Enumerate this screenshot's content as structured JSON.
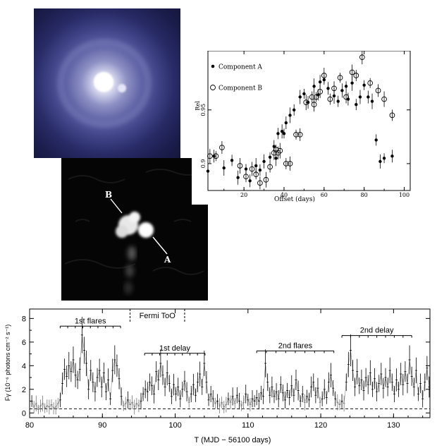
{
  "optical_image": {},
  "radio_image": {
    "label_b": "B",
    "label_a": "A"
  },
  "chart_data": [
    {
      "type": "scatter",
      "xlabel": "Offset (days)",
      "ylabel": "Rel",
      "xticks": [
        "20",
        "40",
        "60",
        "80",
        "100"
      ],
      "yticks": [
        "0.9",
        "0.95"
      ],
      "xlim": [
        2,
        103
      ],
      "ylim": [
        0.875,
        1.005
      ],
      "series": [
        {
          "name": "Component A",
          "marker": "filled",
          "points": [
            [
              2,
              0.893
            ],
            [
              5,
              0.907
            ],
            [
              10,
              0.896
            ],
            [
              14,
              0.903
            ],
            [
              17,
              0.887
            ],
            [
              21,
              0.895
            ],
            [
              23,
              0.884
            ],
            [
              26,
              0.898
            ],
            [
              28,
              0.894
            ],
            [
              30,
              0.902
            ],
            [
              33,
              0.906
            ],
            [
              35,
              0.916
            ],
            [
              36,
              0.905
            ],
            [
              37,
              0.928
            ],
            [
              39,
              0.93
            ],
            [
              40,
              0.928
            ],
            [
              41,
              0.938
            ],
            [
              43,
              0.945
            ],
            [
              45,
              0.95
            ],
            [
              48,
              0.962
            ],
            [
              50,
              0.965
            ],
            [
              52,
              0.957
            ],
            [
              55,
              0.972
            ],
            [
              57,
              0.964
            ],
            [
              58,
              0.976
            ],
            [
              60,
              0.978
            ],
            [
              62,
              0.97
            ],
            [
              65,
              0.963
            ],
            [
              67,
              0.958
            ],
            [
              69,
              0.968
            ],
            [
              71,
              0.972
            ],
            [
              72,
              0.96
            ],
            [
              74,
              0.975
            ],
            [
              76,
              0.955
            ],
            [
              78,
              0.962
            ],
            [
              80,
              0.973
            ],
            [
              82,
              0.962
            ],
            [
              84,
              0.958
            ],
            [
              86,
              0.922
            ],
            [
              88,
              0.902
            ],
            [
              90,
              0.905
            ],
            [
              94,
              0.907
            ]
          ]
        },
        {
          "name": "Component B",
          "marker": "open",
          "points": [
            [
              3,
              0.907
            ],
            [
              6,
              0.907
            ],
            [
              9,
              0.915
            ],
            [
              18,
              0.898
            ],
            [
              21,
              0.888
            ],
            [
              24,
              0.895
            ],
            [
              26,
              0.89
            ],
            [
              28,
              0.882
            ],
            [
              31,
              0.885
            ],
            [
              33,
              0.897
            ],
            [
              35,
              0.91
            ],
            [
              36,
              0.913
            ],
            [
              37,
              0.91
            ],
            [
              38,
              0.912
            ],
            [
              41,
              0.9
            ],
            [
              43,
              0.9
            ],
            [
              46,
              0.927
            ],
            [
              48,
              0.927
            ],
            [
              51,
              0.957
            ],
            [
              54,
              0.962
            ],
            [
              55,
              0.955
            ],
            [
              56,
              0.962
            ],
            [
              58,
              0.967
            ],
            [
              60,
              0.982
            ],
            [
              63,
              0.96
            ],
            [
              65,
              0.97
            ],
            [
              68,
              0.98
            ],
            [
              71,
              0.962
            ],
            [
              74,
              0.985
            ],
            [
              76,
              0.982
            ],
            [
              79,
              0.999
            ],
            [
              83,
              0.975
            ],
            [
              87,
              0.968
            ],
            [
              90,
              0.96
            ],
            [
              94,
              0.945
            ]
          ]
        }
      ]
    },
    {
      "type": "line",
      "xlabel": "T (MJD − 56100 days)",
      "ylabel": "Fγ (10⁻⁶ photons cm⁻² s⁻¹)",
      "xticks": [
        "80",
        "90",
        "100",
        "110",
        "120",
        "130"
      ],
      "yticks": [
        "0",
        "2",
        "4",
        "6",
        "8"
      ],
      "xlim": [
        80,
        135
      ],
      "ylim": [
        -0.4,
        8.8
      ],
      "baseline": 0.35,
      "annotations": [
        {
          "text": "1st flares",
          "x1": 84.2,
          "x2": 92.5,
          "y": 7.35
        },
        {
          "text": "1st delay",
          "x1": 95.8,
          "x2": 104.1,
          "y": 5.05
        },
        {
          "text": "2nd flares",
          "x1": 111.2,
          "x2": 121.8,
          "y": 5.25
        },
        {
          "text": "2nd delay",
          "x1": 122.9,
          "x2": 132.5,
          "y": 6.55
        }
      ],
      "fermi_too": {
        "text": "Fermi ToO",
        "x1": 93.8,
        "x2": 101.3
      },
      "series": [
        {
          "name": "",
          "points": [
            [
              80.3,
              1.0
            ],
            [
              80.6,
              0.5
            ],
            [
              80.9,
              0.8
            ],
            [
              81.2,
              0.3
            ],
            [
              81.5,
              0.6
            ],
            [
              81.8,
              0.8
            ],
            [
              82.1,
              0.4
            ],
            [
              82.4,
              0.6
            ],
            [
              82.7,
              0.5
            ],
            [
              83.0,
              0.7
            ],
            [
              83.3,
              0.4
            ],
            [
              83.6,
              0.5
            ],
            [
              83.9,
              0.8
            ],
            [
              84.2,
              1.1
            ],
            [
              84.5,
              2.5
            ],
            [
              84.8,
              3.7
            ],
            [
              85.1,
              3.1
            ],
            [
              85.4,
              4.0
            ],
            [
              85.7,
              3.5
            ],
            [
              86.0,
              4.5
            ],
            [
              86.3,
              3.2
            ],
            [
              86.6,
              2.8
            ],
            [
              86.9,
              3.7
            ],
            [
              87.2,
              6.6
            ],
            [
              87.5,
              5.3
            ],
            [
              87.8,
              4.2
            ],
            [
              88.1,
              2.0
            ],
            [
              88.4,
              3.6
            ],
            [
              88.7,
              2.6
            ],
            [
              89.0,
              1.8
            ],
            [
              89.3,
              3.0
            ],
            [
              89.6,
              3.6
            ],
            [
              89.9,
              2.2
            ],
            [
              90.2,
              3.4
            ],
            [
              90.5,
              1.8
            ],
            [
              90.8,
              2.8
            ],
            [
              91.1,
              1.2
            ],
            [
              91.4,
              3.6
            ],
            [
              91.7,
              4.5
            ],
            [
              92.0,
              4.0
            ],
            [
              92.3,
              2.9
            ],
            [
              92.6,
              1.4
            ],
            [
              92.9,
              0.6
            ],
            [
              93.2,
              0.8
            ],
            [
              93.5,
              1.1
            ],
            [
              93.8,
              0.7
            ],
            [
              94.1,
              0.9
            ],
            [
              94.4,
              0.5
            ],
            [
              94.7,
              0.8
            ],
            [
              95.0,
              0.6
            ],
            [
              95.3,
              1.0
            ],
            [
              95.6,
              1.6
            ],
            [
              95.9,
              2.0
            ],
            [
              96.2,
              1.8
            ],
            [
              96.5,
              2.6
            ],
            [
              96.8,
              2.3
            ],
            [
              97.1,
              1.6
            ],
            [
              97.4,
              3.5
            ],
            [
              97.7,
              2.8
            ],
            [
              98.0,
              4.2
            ],
            [
              98.3,
              3.2
            ],
            [
              98.6,
              2.2
            ],
            [
              98.9,
              3.4
            ],
            [
              99.2,
              2.5
            ],
            [
              99.5,
              1.4
            ],
            [
              99.8,
              2.4
            ],
            [
              100.1,
              1.6
            ],
            [
              100.4,
              2.2
            ],
            [
              100.7,
              1.2
            ],
            [
              101.0,
              2.0
            ],
            [
              101.3,
              2.7
            ],
            [
              101.6,
              1.8
            ],
            [
              101.9,
              0.9
            ],
            [
              102.2,
              1.6
            ],
            [
              102.5,
              2.4
            ],
            [
              102.8,
              1.5
            ],
            [
              103.1,
              2.6
            ],
            [
              103.4,
              3.3
            ],
            [
              103.7,
              2.2
            ],
            [
              104.0,
              4.2
            ],
            [
              104.3,
              2.6
            ],
            [
              104.6,
              1.1
            ],
            [
              104.9,
              1.6
            ],
            [
              105.2,
              1.2
            ],
            [
              105.5,
              0.8
            ],
            [
              105.8,
              1.0
            ],
            [
              106.1,
              0.6
            ],
            [
              106.4,
              0.9
            ],
            [
              106.7,
              0.5
            ],
            [
              107.0,
              0.7
            ],
            [
              107.3,
              1.2
            ],
            [
              107.6,
              0.9
            ],
            [
              107.9,
              1.4
            ],
            [
              108.2,
              0.8
            ],
            [
              108.5,
              1.5
            ],
            [
              108.8,
              1.0
            ],
            [
              109.1,
              0.6
            ],
            [
              109.4,
              0.9
            ],
            [
              109.7,
              1.6
            ],
            [
              110.0,
              1.1
            ],
            [
              110.3,
              0.7
            ],
            [
              110.6,
              1.2
            ],
            [
              110.9,
              1.0
            ],
            [
              111.2,
              1.3
            ],
            [
              111.5,
              1.0
            ],
            [
              111.8,
              1.7
            ],
            [
              112.1,
              1.4
            ],
            [
              112.4,
              4.2
            ],
            [
              112.7,
              2.6
            ],
            [
              113.0,
              1.5
            ],
            [
              113.3,
              2.2
            ],
            [
              113.6,
              1.4
            ],
            [
              113.9,
              1.8
            ],
            [
              114.2,
              1.2
            ],
            [
              114.5,
              2.4
            ],
            [
              114.8,
              1.7
            ],
            [
              115.1,
              1.1
            ],
            [
              115.4,
              1.9
            ],
            [
              115.7,
              1.3
            ],
            [
              116.0,
              2.3
            ],
            [
              116.3,
              1.5
            ],
            [
              116.6,
              2.8
            ],
            [
              116.9,
              1.9
            ],
            [
              117.2,
              1.0
            ],
            [
              117.5,
              1.6
            ],
            [
              117.8,
              0.9
            ],
            [
              118.1,
              1.4
            ],
            [
              118.4,
              1.1
            ],
            [
              118.7,
              2.2
            ],
            [
              119.0,
              2.6
            ],
            [
              119.3,
              1.5
            ],
            [
              119.6,
              2.1
            ],
            [
              119.9,
              0.9
            ],
            [
              120.2,
              1.2
            ],
            [
              120.5,
              2.0
            ],
            [
              120.8,
              1.3
            ],
            [
              121.1,
              2.6
            ],
            [
              121.4,
              3.2
            ],
            [
              121.7,
              2.1
            ],
            [
              122.0,
              1.2
            ],
            [
              122.3,
              0.9
            ],
            [
              122.6,
              0.7
            ],
            [
              122.9,
              1.0
            ],
            [
              123.2,
              0.8
            ],
            [
              123.5,
              2.6
            ],
            [
              123.8,
              4.1
            ],
            [
              124.1,
              5.3
            ],
            [
              124.4,
              3.6
            ],
            [
              124.7,
              2.2
            ],
            [
              125.0,
              3.5
            ],
            [
              125.3,
              2.3
            ],
            [
              125.6,
              2.8
            ],
            [
              125.9,
              1.9
            ],
            [
              126.2,
              3.0
            ],
            [
              126.5,
              2.4
            ],
            [
              126.8,
              3.4
            ],
            [
              127.1,
              2.0
            ],
            [
              127.4,
              2.9
            ],
            [
              127.7,
              1.8
            ],
            [
              128.0,
              2.5
            ],
            [
              128.3,
              3.3
            ],
            [
              128.6,
              2.1
            ],
            [
              128.9,
              3.0
            ],
            [
              129.2,
              2.2
            ],
            [
              129.5,
              3.6
            ],
            [
              129.8,
              2.6
            ],
            [
              130.1,
              1.6
            ],
            [
              130.4,
              2.8
            ],
            [
              130.7,
              2.0
            ],
            [
              131.0,
              3.3
            ],
            [
              131.3,
              2.4
            ],
            [
              131.6,
              3.5
            ],
            [
              131.9,
              2.5
            ],
            [
              132.2,
              4.5
            ],
            [
              132.5,
              3.1
            ],
            [
              132.8,
              2.2
            ],
            [
              133.1,
              3.6
            ],
            [
              133.4,
              1.6
            ],
            [
              133.7,
              2.5
            ],
            [
              134.0,
              1.2
            ],
            [
              134.3,
              2.6
            ],
            [
              134.6,
              3.8
            ],
            [
              134.9,
              2.2
            ]
          ]
        }
      ]
    }
  ]
}
